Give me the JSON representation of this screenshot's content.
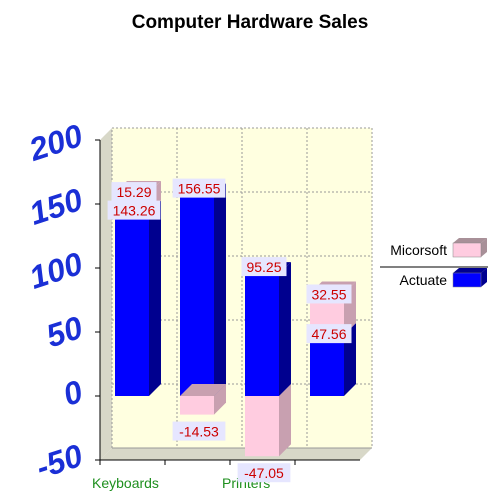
{
  "chart_data": {
    "type": "bar",
    "stacked": true,
    "three_d": true,
    "title": "Computer Hardware Sales",
    "xlabel": "",
    "ylabel": "",
    "categories": [
      "Keyboards",
      "",
      "Printers",
      ""
    ],
    "x_tick_labels": [
      "Keyboards",
      "Printers"
    ],
    "ylim": [
      -50,
      200
    ],
    "yticks": [
      "200",
      "150",
      "100",
      "50",
      "0",
      "-50"
    ],
    "grid": true,
    "legend_position": "right",
    "series": [
      {
        "name": "Actuate",
        "values": [
          143.26,
          156.55,
          0,
          47.56
        ],
        "labels": [
          "143.26",
          "156.55",
          "",
          "47.56"
        ],
        "color": "#0000ff",
        "side_color": "#00008f"
      },
      {
        "name": "Micorsoft",
        "values": [
          15.29,
          -14.53,
          -47.05,
          32.55
        ],
        "labels": [
          "15.29",
          "-14.53",
          "-47.05",
          "32.55"
        ],
        "color": "#ffcce0",
        "side_color": "#c8a0b0"
      },
      {
        "name": "",
        "values": [
          0,
          0,
          95.25,
          0
        ],
        "labels": [
          "",
          "",
          "95.25",
          ""
        ],
        "color": "#0000ff",
        "side_color": "#00008f"
      }
    ],
    "legend": [
      {
        "name": "Micorsoft",
        "color": "#ffcce0"
      },
      {
        "name": "Actuate",
        "color": "#0000ff"
      }
    ],
    "colors": {
      "plot_background": "#ffffe0",
      "wall": "#d8d8c8",
      "grid": "#999999",
      "label_box": "#e6e6ff",
      "data_label": "#cc0000",
      "y_tick": "#1a2fd6",
      "x_tick": "#1e8f1e"
    }
  }
}
